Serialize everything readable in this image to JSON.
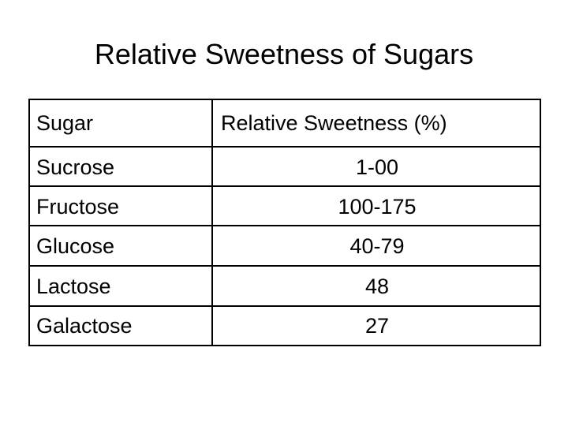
{
  "slide": {
    "title": "Relative Sweetness of Sugars"
  },
  "table": {
    "headers": [
      "Sugar",
      "Relative Sweetness (%)"
    ],
    "rows": [
      {
        "sugar": "Sucrose",
        "sweetness": "1-00"
      },
      {
        "sugar": "Fructose",
        "sweetness": "100-175"
      },
      {
        "sugar": "Glucose",
        "sweetness": "40-79"
      },
      {
        "sugar": "Lactose",
        "sweetness": "48"
      },
      {
        "sugar": "Galactose",
        "sweetness": "27"
      }
    ]
  }
}
